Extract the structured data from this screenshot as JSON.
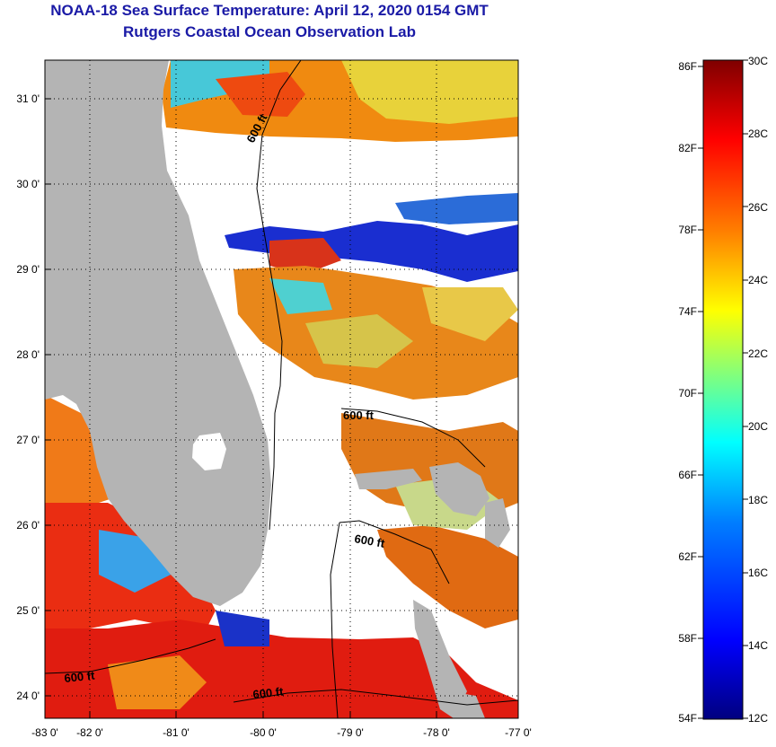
{
  "header": {
    "title": "NOAA-18 Sea Surface Temperature:  April 12, 2020 0154 GMT",
    "subtitle": "Rutgers Coastal Ocean Observation Lab"
  },
  "map": {
    "lon_ticks": [
      "-83 0'",
      "-82 0'",
      "-81 0'",
      "-80 0'",
      "-79 0'",
      "-78 0'",
      "-77 0'"
    ],
    "lat_ticks": [
      "31 0'",
      "30 0'",
      "29 0'",
      "28 0'",
      "27 0'",
      "26 0'",
      "25 0'",
      "24 0'"
    ],
    "contour_labels": [
      "600 ft",
      "600 ft",
      "600 ft",
      "600 ft",
      "600 ft"
    ],
    "land_color": "#b4b4b4",
    "cloud_color": "#ffffff",
    "grid": "dotted"
  },
  "colorbar": {
    "fahrenheit_labels": [
      "86F",
      "82F",
      "78F",
      "74F",
      "70F",
      "66F",
      "62F",
      "58F",
      "54F"
    ],
    "celsius_labels": [
      "30C",
      "28C",
      "26C",
      "24C",
      "22C",
      "20C",
      "18C",
      "16C",
      "14C",
      "12C"
    ],
    "min_c": 12,
    "max_c": 30,
    "colormap": [
      "#00007f",
      "#0000ff",
      "#007fff",
      "#00ffff",
      "#7fff7f",
      "#ffff00",
      "#ff7f00",
      "#ff0000",
      "#7f0000"
    ]
  }
}
